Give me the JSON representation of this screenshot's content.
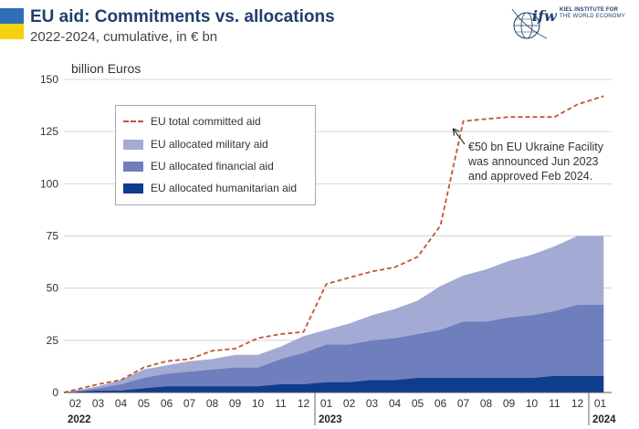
{
  "header": {
    "title": "EU aid: Commitments vs. allocations",
    "subtitle": "2022-2024, cumulative, in € bn",
    "flag_colors": [
      "#2f6fb5",
      "#f5d20f"
    ]
  },
  "logo": {
    "mark": "ifw",
    "line1": "KIEL INSTITUTE FOR",
    "line2": "THE WORLD ECONOMY",
    "icon": "kiel-globe-logo-icon"
  },
  "chart_data": {
    "type": "area",
    "title": "EU aid: Commitments vs. allocations",
    "subtitle": "2022-2024, cumulative, in € bn",
    "ylabel": "billion Euros",
    "xlabel": "",
    "ylim": [
      0,
      150
    ],
    "yticks": [
      0,
      25,
      50,
      75,
      100,
      125,
      150
    ],
    "grid": "horizontal",
    "legend_position": "top-left",
    "x": [
      "02",
      "03",
      "04",
      "05",
      "06",
      "07",
      "08",
      "09",
      "10",
      "11",
      "12",
      "01",
      "02",
      "03",
      "04",
      "05",
      "06",
      "07",
      "08",
      "09",
      "10",
      "11",
      "12",
      "01"
    ],
    "years": [
      {
        "label": "2022",
        "start_index": 0
      },
      {
        "label": "2023",
        "start_index": 11
      },
      {
        "label": "2024",
        "start_index": 23
      }
    ],
    "series": [
      {
        "name": "EU total committed aid",
        "kind": "line",
        "style": "dashed",
        "color": "#c45538",
        "values": [
          0,
          4,
          6,
          12,
          15,
          16,
          20,
          21,
          26,
          28,
          29,
          52,
          55,
          58,
          60,
          65,
          80,
          130,
          131,
          132,
          132,
          132,
          138,
          142
        ]
      },
      {
        "name": "EU allocated military aid",
        "kind": "area",
        "stacked": true,
        "color": "#a3aad4",
        "values": [
          0,
          1,
          2,
          4,
          4,
          5,
          5,
          6,
          6,
          6,
          8,
          7,
          10,
          12,
          14,
          16,
          21,
          22,
          25,
          27,
          29,
          31,
          33,
          33
        ]
      },
      {
        "name": "EU allocated financial aid",
        "kind": "area",
        "stacked": true,
        "color": "#6f7fbd",
        "values": [
          0,
          1,
          3,
          5,
          6,
          7,
          8,
          9,
          9,
          12,
          15,
          18,
          18,
          19,
          20,
          21,
          23,
          27,
          27,
          29,
          30,
          31,
          34,
          34
        ]
      },
      {
        "name": "EU allocated humanitarian aid",
        "kind": "area",
        "stacked": true,
        "color": "#0f3d8e",
        "values": [
          0,
          1,
          1,
          2,
          3,
          3,
          3,
          3,
          3,
          4,
          4,
          5,
          5,
          6,
          6,
          7,
          7,
          7,
          7,
          7,
          7,
          8,
          8,
          8
        ]
      }
    ],
    "annotation": {
      "lines": [
        "€50 bn EU Ukraine Facility",
        "was announced Jun 2023",
        "and approved Feb 2024."
      ],
      "points_to_index": 16
    }
  }
}
